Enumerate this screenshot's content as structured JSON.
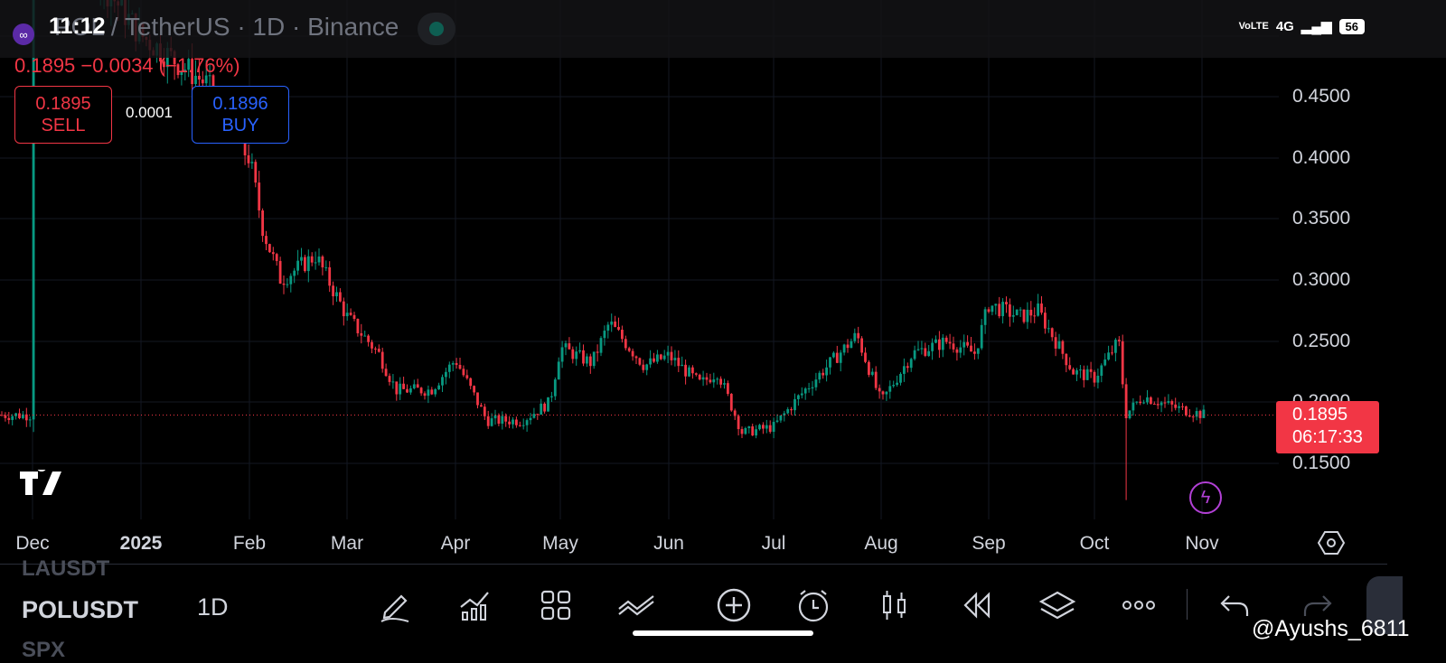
{
  "status_bar": {
    "time": "11:12",
    "network": "4G",
    "volte": "VoLTE",
    "battery": "56"
  },
  "header": {
    "symbol_title": "POL / TetherUS · 1D · Binance",
    "price_change": "0.1895  −0.0034 (−1.76%)"
  },
  "trade": {
    "sell_price": "0.1895",
    "sell_label": "SELL",
    "spread": "0.0001",
    "buy_price": "0.1896",
    "buy_label": "BUY"
  },
  "last_price_tag": {
    "price": "0.1895",
    "countdown": "06:17:33"
  },
  "chart_data": {
    "type": "candlestick",
    "symbol": "POLUSDT",
    "interval": "1D",
    "exchange": "Binance",
    "y_ticks": [
      "0.4500",
      "0.4000",
      "0.3500",
      "0.3000",
      "0.2500",
      "0.2000",
      "0.1500"
    ],
    "y_range": [
      0.12,
      0.5
    ],
    "x_ticks": [
      "Dec",
      "2025",
      "Feb",
      "Mar",
      "Apr",
      "May",
      "Jun",
      "Jul",
      "Aug",
      "Sep",
      "Oct",
      "Nov"
    ],
    "close_path": [
      {
        "date": "Dec 1",
        "close": 0.62
      },
      {
        "date": "Jan 1",
        "close": 0.5
      },
      {
        "date": "Jan 20",
        "close": 0.46
      },
      {
        "date": "Jan 29",
        "close": 0.41
      },
      {
        "date": "Feb 1",
        "close": 0.4
      },
      {
        "date": "Feb 5",
        "close": 0.34
      },
      {
        "date": "Feb 10",
        "close": 0.3
      },
      {
        "date": "Feb 20",
        "close": 0.32
      },
      {
        "date": "Mar 1",
        "close": 0.27
      },
      {
        "date": "Mar 10",
        "close": 0.24
      },
      {
        "date": "Mar 15",
        "close": 0.21
      },
      {
        "date": "Mar 25",
        "close": 0.21
      },
      {
        "date": "Apr 1",
        "close": 0.235
      },
      {
        "date": "Apr 10",
        "close": 0.185
      },
      {
        "date": "Apr 20",
        "close": 0.185
      },
      {
        "date": "Apr 28",
        "close": 0.2
      },
      {
        "date": "May 1",
        "close": 0.245
      },
      {
        "date": "May 10",
        "close": 0.232
      },
      {
        "date": "May 15",
        "close": 0.265
      },
      {
        "date": "May 25",
        "close": 0.23
      },
      {
        "date": "Jun 1",
        "close": 0.238
      },
      {
        "date": "Jun 10",
        "close": 0.215
      },
      {
        "date": "Jun 15",
        "close": 0.225
      },
      {
        "date": "Jun 22",
        "close": 0.175
      },
      {
        "date": "Jul 1",
        "close": 0.18
      },
      {
        "date": "Jul 10",
        "close": 0.21
      },
      {
        "date": "Jul 20",
        "close": 0.24
      },
      {
        "date": "Jul 25",
        "close": 0.255
      },
      {
        "date": "Aug 1",
        "close": 0.2
      },
      {
        "date": "Aug 10",
        "close": 0.24
      },
      {
        "date": "Aug 20",
        "close": 0.25
      },
      {
        "date": "Aug 28",
        "close": 0.24
      },
      {
        "date": "Sep 1",
        "close": 0.28
      },
      {
        "date": "Sep 10",
        "close": 0.27
      },
      {
        "date": "Sep 15",
        "close": 0.275
      },
      {
        "date": "Sep 25",
        "close": 0.225
      },
      {
        "date": "Oct 1",
        "close": 0.22
      },
      {
        "date": "Oct 8",
        "close": 0.25
      },
      {
        "date": "Oct 10",
        "close": 0.19
      },
      {
        "date": "Oct 15",
        "close": 0.205
      },
      {
        "date": "Oct 25",
        "close": 0.195
      },
      {
        "date": "Nov 2",
        "close": 0.1895
      }
    ],
    "notable_wick_low": {
      "date": "Oct 10",
      "low": 0.12
    },
    "last_price": 0.1895,
    "up_color": "#089981",
    "down_color": "#f23645"
  },
  "bottom_bar": {
    "prev_symbol": "LAUSDT",
    "symbol": "POLUSDT",
    "next_symbol": "SPX",
    "interval": "1D",
    "tools": [
      "pencil-icon",
      "indicators-icon",
      "layouts-icon",
      "compare-icon",
      "add-icon",
      "alert-icon",
      "candles-icon",
      "replay-icon",
      "layers-icon",
      "more-icon",
      "undo-icon",
      "redo-icon"
    ]
  },
  "watermark": "@Ayushs_6811"
}
